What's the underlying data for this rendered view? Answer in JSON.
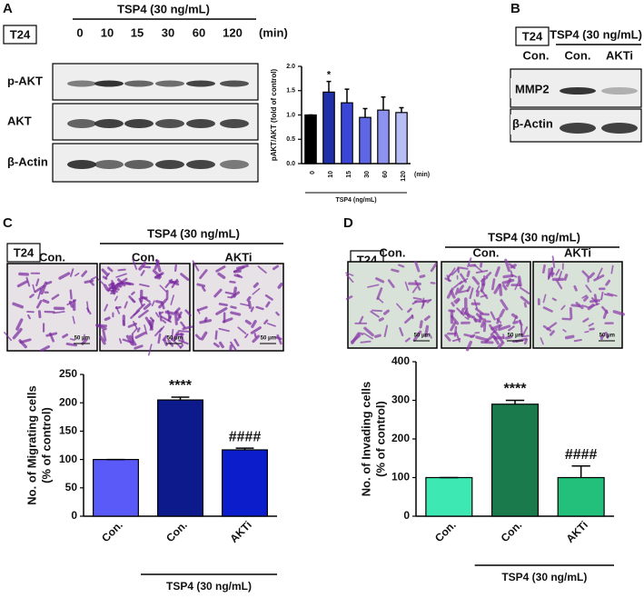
{
  "panel_labels": [
    "A",
    "B",
    "C",
    "D"
  ],
  "cell_line": "T24",
  "blot_a": {
    "treatment": "TSP4 (30 ng/mL)",
    "lanes": [
      "0",
      "10",
      "15",
      "30",
      "60",
      "120"
    ],
    "unit": "(min)",
    "rows": [
      "p-AKT",
      "AKT",
      "β-Actin"
    ]
  },
  "blot_b": {
    "treatment": "TSP4 (30 ng/mL)",
    "lanes": [
      "Con.",
      "Con.",
      "AKTi"
    ],
    "rows": [
      "MMP2",
      "β-Actin"
    ]
  },
  "migration_images": {
    "treatment": "TSP4 (30 ng/mL)",
    "lanes": [
      "Con.",
      "Con.",
      "AKTi"
    ],
    "scale_bar": "50 μm"
  },
  "invasion_images": {
    "treatment": "TSP4 (30 ng/mL)",
    "lanes": [
      "Con.",
      "Con.",
      "AKTi"
    ],
    "scale_bar": "50 μm"
  },
  "chart_data": [
    {
      "type": "bar",
      "categories": [
        "0",
        "10",
        "15",
        "30",
        "60",
        "120"
      ],
      "x_unit": "(min)",
      "xlabel": "TSP4 (ng/mL)",
      "ylabel": [
        "pAKT/AKT (fold of control)"
      ],
      "values": [
        1.0,
        1.47,
        1.25,
        0.95,
        1.1,
        1.05
      ],
      "errors": [
        0,
        0.22,
        0.28,
        0.18,
        0.27,
        0.1
      ],
      "colors": [
        "#000000",
        "#1f2fa8",
        "#3a46d8",
        "#5f66e6",
        "#8c92ee",
        "#b9bdf6"
      ],
      "annotations": [
        null,
        "*",
        null,
        null,
        null,
        null
      ],
      "ylim": [
        0,
        2
      ],
      "yticks": [
        {
          "value": 0,
          "label": "0.0"
        },
        0.5,
        {
          "value": 1,
          "label": "1.0"
        },
        1.5,
        {
          "value": 2,
          "label": "2.0"
        }
      ]
    },
    {
      "type": "bar",
      "categories": [
        "Con.",
        "Con.",
        "AKTi"
      ],
      "group_label": "TSP4 (30 ng/mL)",
      "ylabel": [
        "No. of Migrating cells",
        "(% of control)"
      ],
      "values": [
        100,
        205,
        117
      ],
      "errors": [
        0,
        5,
        3
      ],
      "colors": [
        "#5a5af8",
        "#0d1a8c",
        "#0c1dcc"
      ],
      "annotations": [
        null,
        "****",
        "####"
      ],
      "ylim": [
        0,
        250
      ],
      "yticks": [
        0,
        50,
        100,
        150,
        200,
        250
      ]
    },
    {
      "type": "bar",
      "categories": [
        "Con.",
        "Con.",
        "AKTi"
      ],
      "group_label": "TSP4 (30 ng/mL)",
      "ylabel": [
        "No. of Invading cells",
        "(% of control)"
      ],
      "values": [
        100,
        290,
        100
      ],
      "errors": [
        0,
        10,
        30
      ],
      "colors": [
        "#3ee8b2",
        "#1b7a4b",
        "#22c07b"
      ],
      "annotations": [
        null,
        "****",
        "####"
      ],
      "ylim": [
        0,
        400
      ],
      "yticks": [
        0,
        100,
        200,
        300,
        400
      ]
    }
  ]
}
